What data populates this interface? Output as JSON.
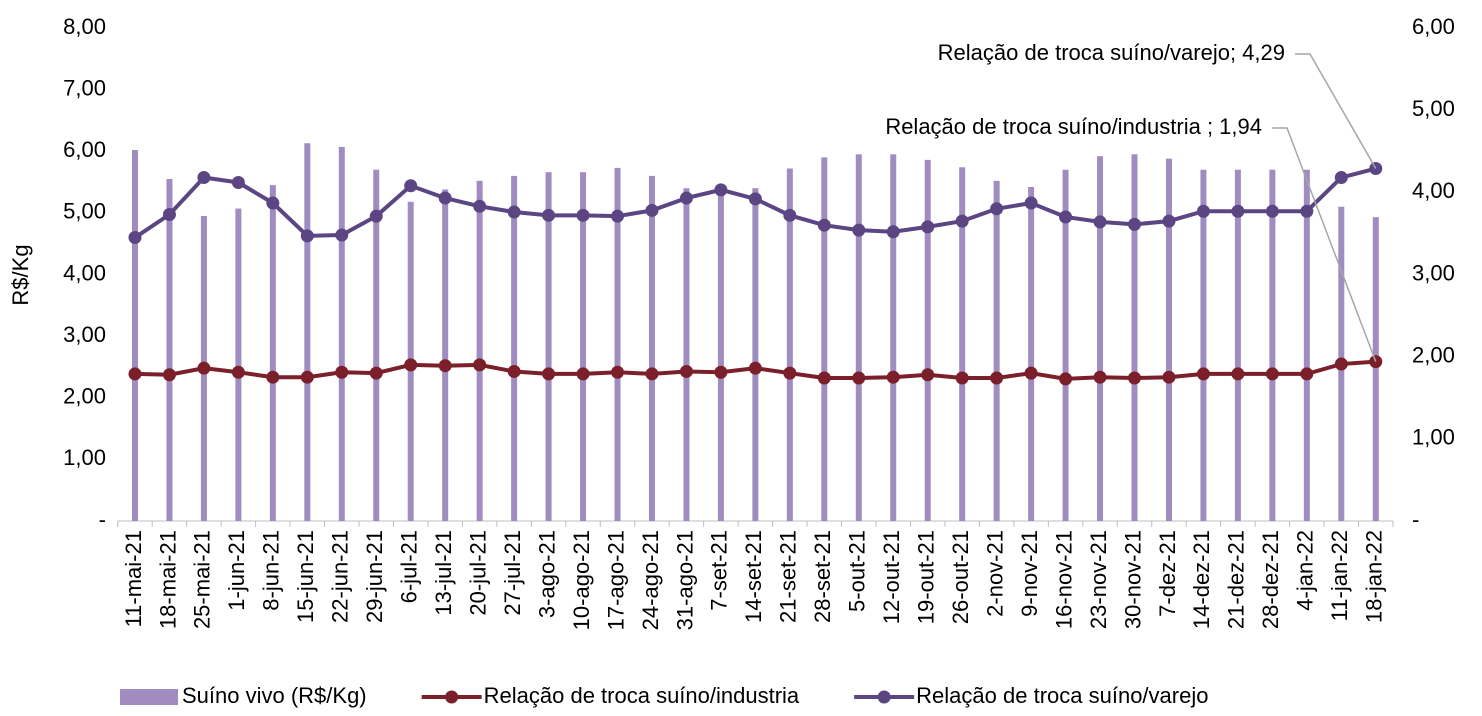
{
  "chart_data": {
    "type": "bar-line",
    "y_label": "R$/Kg",
    "categories": [
      "11-mai-21",
      "18-mai-21",
      "25-mai-21",
      "1-jun-21",
      "8-jun-21",
      "15-jun-21",
      "22-jun-21",
      "29-jun-21",
      "6-jul-21",
      "13-jul-21",
      "20-jul-21",
      "27-jul-21",
      "3-ago-21",
      "10-ago-21",
      "17-ago-21",
      "24-ago-21",
      "31-ago-21",
      "7-set-21",
      "14-set-21",
      "21-set-21",
      "28-set-21",
      "5-out-21",
      "12-out-21",
      "19-out-21",
      "26-out-21",
      "2-nov-21",
      "9-nov-21",
      "16-nov-21",
      "23-nov-21",
      "30-nov-21",
      "7-dez-21",
      "14-dez-21",
      "21-dez-21",
      "28-dez-21",
      "4-jan-22",
      "11-jan-22",
      "18-jan-22"
    ],
    "series": [
      {
        "name": "Suíno vivo (R$/Kg)",
        "type": "bar",
        "color": "#a08cc0",
        "axis": "y",
        "values": [
          6.02,
          5.55,
          4.95,
          5.07,
          5.45,
          6.13,
          6.07,
          5.7,
          5.18,
          5.38,
          5.52,
          5.6,
          5.66,
          5.66,
          5.73,
          5.6,
          5.4,
          5.3,
          5.4,
          5.72,
          5.9,
          5.95,
          5.95,
          5.86,
          5.74,
          5.52,
          5.42,
          5.7,
          5.92,
          5.95,
          5.88,
          5.7,
          5.7,
          5.7,
          5.7,
          5.1,
          4.93
        ]
      },
      {
        "name": "Relação de troca suíno/industria",
        "type": "line",
        "color": "#7b1f2a",
        "axis": "y2",
        "values": [
          1.79,
          1.78,
          1.86,
          1.81,
          1.75,
          1.75,
          1.81,
          1.8,
          1.9,
          1.89,
          1.9,
          1.82,
          1.79,
          1.79,
          1.81,
          1.79,
          1.82,
          1.81,
          1.86,
          1.8,
          1.74,
          1.74,
          1.75,
          1.78,
          1.74,
          1.74,
          1.8,
          1.73,
          1.75,
          1.74,
          1.75,
          1.79,
          1.79,
          1.79,
          1.79,
          1.91,
          1.94
        ]
      },
      {
        "name": "Relação de troca suíno/varejo",
        "type": "line",
        "color": "#5b4583",
        "axis": "y2",
        "values": [
          3.45,
          3.73,
          4.18,
          4.12,
          3.87,
          3.47,
          3.48,
          3.71,
          4.08,
          3.93,
          3.83,
          3.76,
          3.72,
          3.72,
          3.71,
          3.78,
          3.93,
          4.03,
          3.92,
          3.72,
          3.6,
          3.54,
          3.52,
          3.58,
          3.65,
          3.8,
          3.87,
          3.7,
          3.64,
          3.61,
          3.65,
          3.77,
          3.77,
          3.77,
          3.77,
          4.18,
          4.29
        ]
      }
    ],
    "annotations": [
      "Relação de troca suíno/varejo; 4,29",
      "Relação de troca suíno/industria ; 1,94"
    ],
    "ylim": [
      0,
      8
    ],
    "yticks": [
      {
        "value": 0,
        "label": "-"
      },
      {
        "value": 1,
        "label": "1,00"
      },
      {
        "value": 2,
        "label": "2,00"
      },
      {
        "value": 3,
        "label": "3,00"
      },
      {
        "value": 4,
        "label": "4,00"
      },
      {
        "value": 5,
        "label": "5,00"
      },
      {
        "value": 6,
        "label": "6,00"
      },
      {
        "value": 7,
        "label": "7,00"
      },
      {
        "value": 8,
        "label": "8,00"
      }
    ],
    "y2lim": [
      0,
      6
    ],
    "y2ticks": [
      {
        "value": 0,
        "label": "-"
      },
      {
        "value": 1,
        "label": "1,00"
      },
      {
        "value": 2,
        "label": "2,00"
      },
      {
        "value": 3,
        "label": "3,00"
      },
      {
        "value": 4,
        "label": "4,00"
      },
      {
        "value": 5,
        "label": "5,00"
      },
      {
        "value": 6,
        "label": "6,00"
      }
    ],
    "grid": false
  }
}
